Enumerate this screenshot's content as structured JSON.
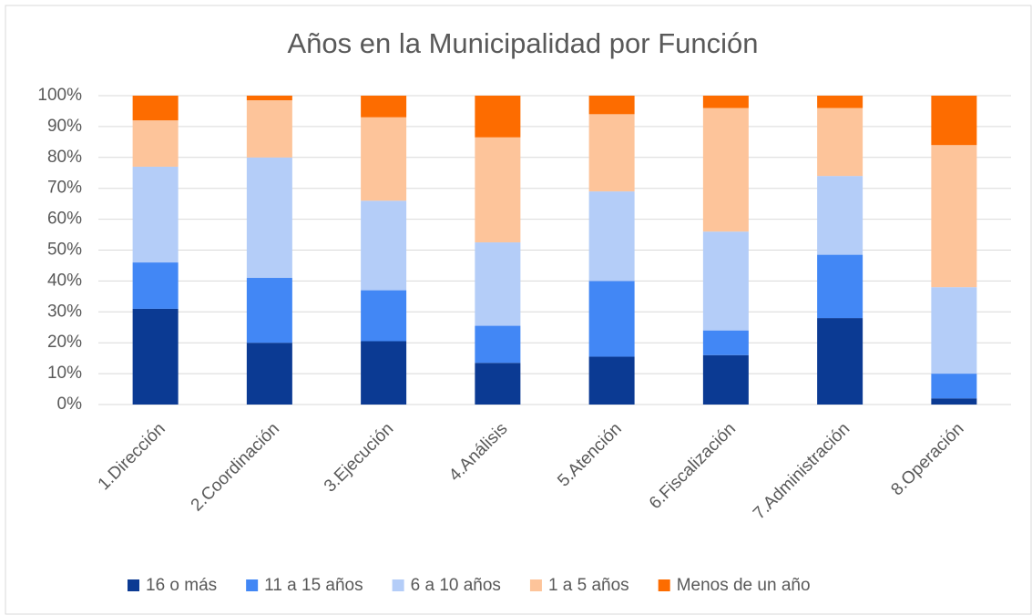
{
  "chart_data": {
    "type": "stacked_bar",
    "title": "Años en la Municipalidad por Función",
    "categories": [
      "1.Dirección",
      "2.Coordinación",
      "3.Ejecución",
      "4.Análisis",
      "5.Atención",
      "6.Fiscalización",
      "7.Administración",
      "8.Operación"
    ],
    "series": [
      {
        "name": "16 o más",
        "color": "#0b3a93",
        "values": [
          31,
          20,
          20.5,
          13.5,
          15.5,
          16,
          28,
          2
        ]
      },
      {
        "name": "11 a 15 años",
        "color": "#4287f5",
        "values": [
          15,
          21,
          16.5,
          12,
          24.5,
          8,
          20.5,
          8
        ]
      },
      {
        "name": "6 a 10 años",
        "color": "#b4cdf8",
        "values": [
          31,
          39,
          29,
          27,
          29,
          32,
          25.5,
          28
        ]
      },
      {
        "name": "1 a 5 años",
        "color": "#fdc49a",
        "values": [
          15,
          18.5,
          27,
          34,
          25,
          40,
          22,
          46
        ]
      },
      {
        "name": "Menos de un año",
        "color": "#fd6c00",
        "values": [
          8,
          1.5,
          7,
          13.5,
          6,
          4,
          4,
          16
        ]
      }
    ],
    "ylim": [
      0,
      100
    ],
    "yticks": [
      {
        "value": 0,
        "label": "0%"
      },
      {
        "value": 10,
        "label": "10%"
      },
      {
        "value": 20,
        "label": "20%"
      },
      {
        "value": 30,
        "label": "30%"
      },
      {
        "value": 40,
        "label": "40%"
      },
      {
        "value": 50,
        "label": "50%"
      },
      {
        "value": 60,
        "label": "60%"
      },
      {
        "value": 70,
        "label": "70%"
      },
      {
        "value": 80,
        "label": "80%"
      },
      {
        "value": 90,
        "label": "90%"
      },
      {
        "value": 100,
        "label": "100%"
      }
    ],
    "grid": true,
    "legend": "bottom"
  }
}
